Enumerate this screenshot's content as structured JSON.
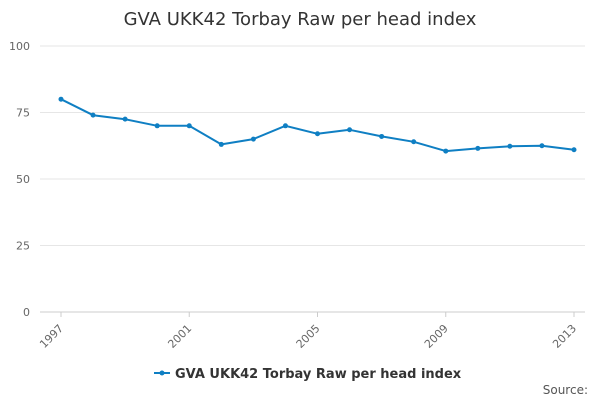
{
  "chart_data": {
    "type": "line",
    "title": "GVA UKK42 Torbay Raw per head index",
    "x": [
      1997,
      1998,
      1999,
      2000,
      2001,
      2002,
      2003,
      2004,
      2005,
      2006,
      2007,
      2008,
      2009,
      2010,
      2011,
      2012,
      2013
    ],
    "series": [
      {
        "name": "GVA UKK42 Torbay Raw per head index",
        "color": "#0f7fc3",
        "values": [
          80,
          74,
          72.5,
          70,
          70,
          63,
          65,
          70,
          67,
          68.5,
          66,
          64,
          60.5,
          61.5,
          62.3,
          62.5,
          61
        ]
      }
    ],
    "xticks": [
      "1997",
      "2001",
      "2005",
      "2009",
      "2013"
    ],
    "yticks": [
      "0",
      "25",
      "50",
      "75",
      "100"
    ],
    "ylim": [
      0,
      100
    ],
    "xlim": [
      1997,
      2013
    ],
    "grid": true,
    "legend": "bottom-center",
    "source_label": "Source:"
  }
}
